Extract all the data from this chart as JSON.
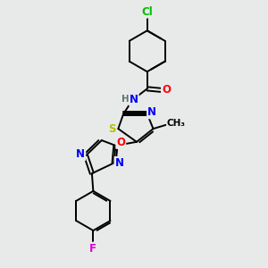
{
  "bg_color": "#e8eaea",
  "bond_color": "#000000",
  "atom_colors": {
    "Cl": "#00bb00",
    "O": "#ff0000",
    "N": "#0000ff",
    "S": "#bbbb00",
    "F": "#dd00dd",
    "C": "#000000",
    "H": "#607070"
  },
  "figsize": [
    3.0,
    3.0
  ],
  "dpi": 100
}
